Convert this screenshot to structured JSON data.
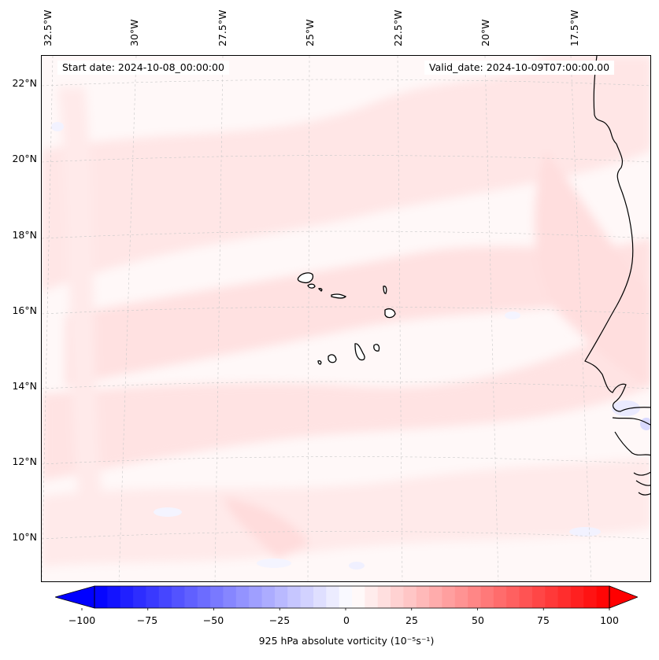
{
  "map": {
    "start_date": "Start date: 2024-10-08_00:00:00",
    "valid_date": "Valid_date: 2024-10-09T07:00:00.00",
    "lon_labels": [
      "32.5°W",
      "30°W",
      "27.5°W",
      "25°W",
      "22.5°W",
      "20°W",
      "17.5°W"
    ],
    "lat_labels": [
      "22°N",
      "20°N",
      "18°N",
      "16°N",
      "14°N",
      "12°N",
      "10°N"
    ],
    "colors": {
      "positive": "#ff0000",
      "negative": "#0000ff",
      "coast": "#000000",
      "grid": "#bbbbbb"
    }
  },
  "colorbar": {
    "title": "925 hPa absolute vorticity (10⁻⁵s⁻¹)",
    "ticks": [
      "−100",
      "−75",
      "−50",
      "−25",
      "0",
      "25",
      "50",
      "75",
      "100"
    ],
    "range": [
      -100,
      100
    ]
  }
}
